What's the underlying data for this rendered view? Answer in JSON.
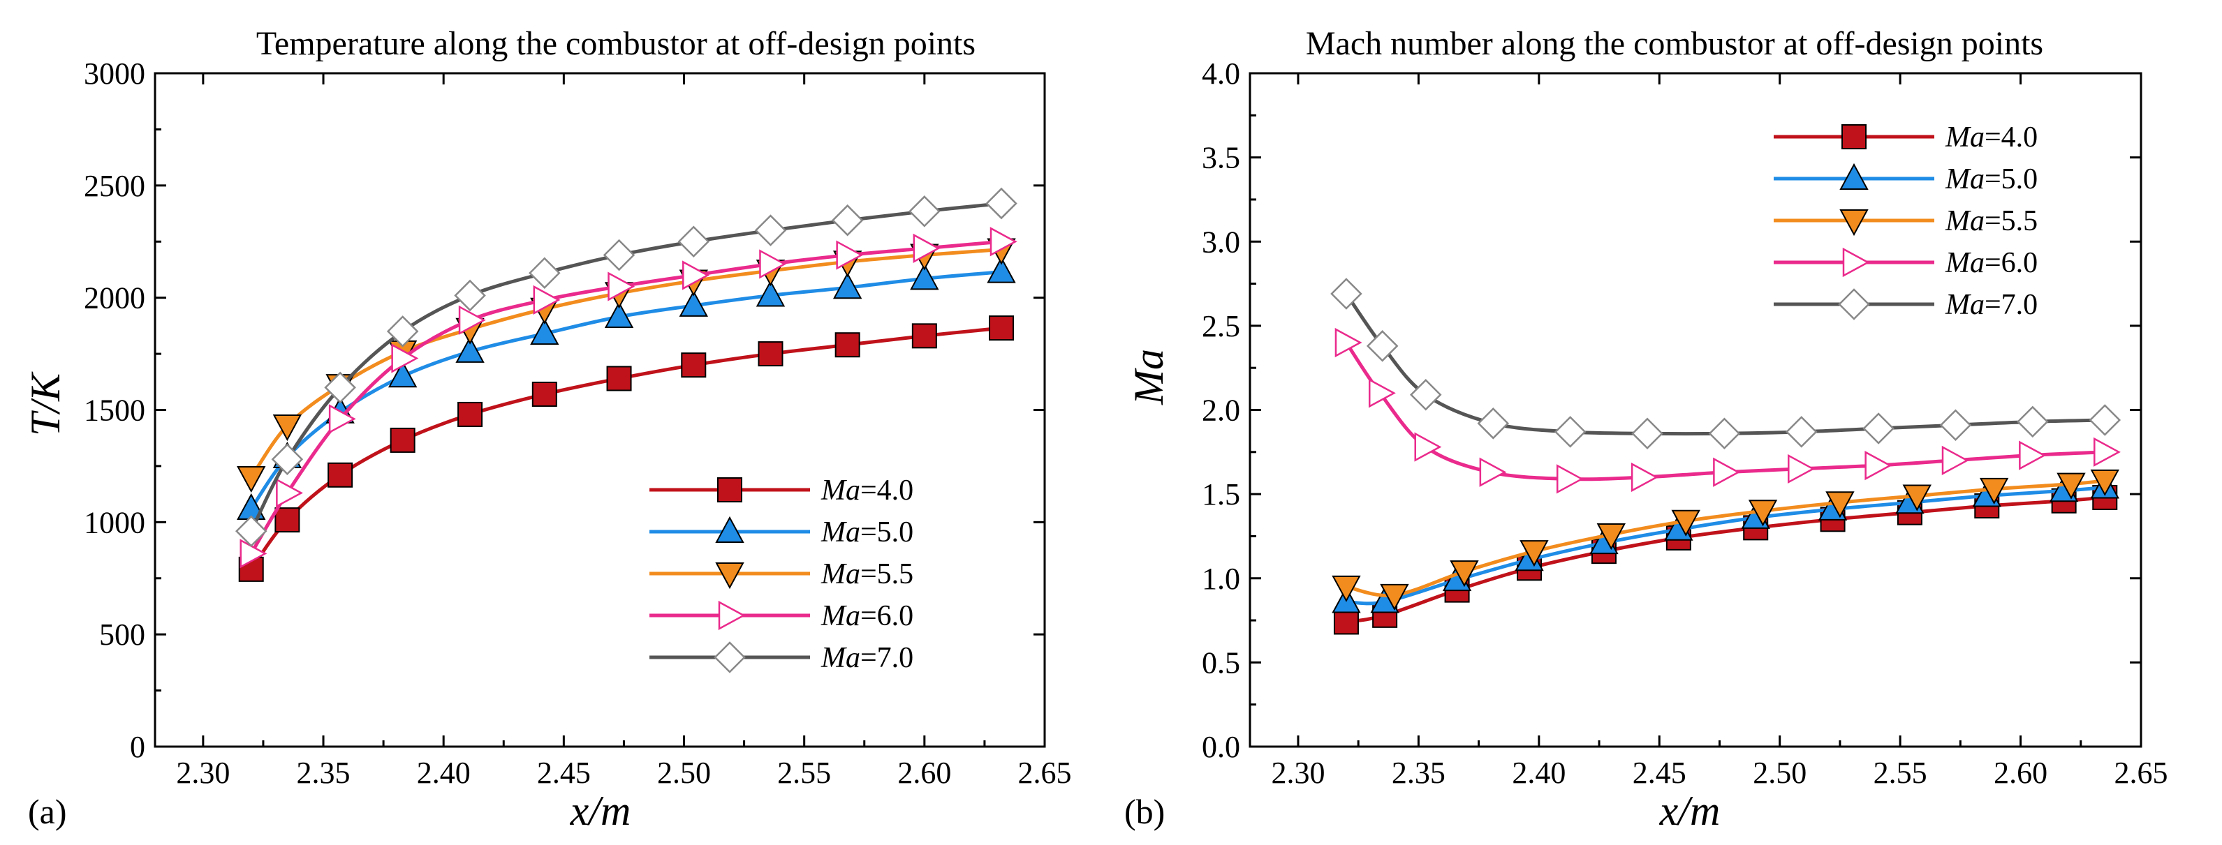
{
  "chart_data": [
    {
      "type": "line",
      "panel_tag": "(a)",
      "title": "Temperature along the combustor at off-design points",
      "xlabel": "x/m",
      "ylabel": "T/K",
      "xlim": [
        2.28,
        2.65
      ],
      "ylim": [
        0,
        3000
      ],
      "xticks": [
        2.3,
        2.35,
        2.4,
        2.45,
        2.5,
        2.55,
        2.6,
        2.65
      ],
      "xtick_labels": [
        "2.30",
        "2.35",
        "2.40",
        "2.45",
        "2.50",
        "2.55",
        "2.60",
        "2.65"
      ],
      "yticks": [
        0,
        500,
        1000,
        1500,
        2000,
        2500,
        3000
      ],
      "ytick_labels": [
        "0",
        "500",
        "1000",
        "1500",
        "2000",
        "2500",
        "3000"
      ],
      "legend_position": "bottom-right",
      "series": [
        {
          "name": "Ma=4.0",
          "name_italic": "Ma",
          "name_rest": "=4.0",
          "color": "#c0121a",
          "marker": "square",
          "marker_fill": "#c0121a",
          "x": [
            2.32,
            2.335,
            2.357,
            2.383,
            2.411,
            2.442,
            2.473,
            2.504,
            2.536,
            2.568,
            2.6,
            2.632
          ],
          "y": [
            790,
            1010,
            1210,
            1365,
            1480,
            1570,
            1640,
            1700,
            1750,
            1790,
            1830,
            1865
          ]
        },
        {
          "name": "Ma=5.0",
          "name_italic": "Ma",
          "name_rest": "=5.0",
          "color": "#1f8ce6",
          "marker": "triangle-up",
          "marker_fill": "#1f8ce6",
          "x": [
            2.32,
            2.335,
            2.357,
            2.383,
            2.411,
            2.442,
            2.473,
            2.504,
            2.536,
            2.568,
            2.6,
            2.632
          ],
          "y": [
            1060,
            1290,
            1490,
            1650,
            1760,
            1840,
            1915,
            1965,
            2010,
            2045,
            2085,
            2115
          ]
        },
        {
          "name": "Ma=5.5",
          "name_italic": "Ma",
          "name_rest": "=5.5",
          "color": "#f28c1e",
          "marker": "triangle-down",
          "marker_fill": "#f28c1e",
          "x": [
            2.32,
            2.335,
            2.357,
            2.383,
            2.411,
            2.442,
            2.473,
            2.504,
            2.536,
            2.568,
            2.6,
            2.632
          ],
          "y": [
            1200,
            1430,
            1610,
            1760,
            1860,
            1950,
            2020,
            2075,
            2120,
            2160,
            2190,
            2215
          ]
        },
        {
          "name": "Ma=6.0",
          "name_italic": "Ma",
          "name_rest": "=6.0",
          "color": "#ea2a8c",
          "marker": "triangle-right",
          "marker_fill": "none",
          "x": [
            2.32,
            2.335,
            2.357,
            2.383,
            2.411,
            2.442,
            2.473,
            2.504,
            2.536,
            2.568,
            2.6,
            2.632
          ],
          "y": [
            860,
            1130,
            1460,
            1730,
            1900,
            1990,
            2050,
            2100,
            2150,
            2190,
            2220,
            2250
          ]
        },
        {
          "name": "Ma=7.0",
          "name_italic": "Ma",
          "name_rest": "=7.0",
          "color": "#555555",
          "marker": "diamond",
          "marker_fill": "none",
          "x": [
            2.32,
            2.335,
            2.357,
            2.383,
            2.411,
            2.442,
            2.473,
            2.504,
            2.536,
            2.568,
            2.6,
            2.632
          ],
          "y": [
            960,
            1280,
            1600,
            1850,
            2010,
            2110,
            2190,
            2250,
            2300,
            2345,
            2385,
            2420
          ]
        }
      ]
    },
    {
      "type": "line",
      "panel_tag": "(b)",
      "title": "Mach number along the combustor at off-design points",
      "xlabel": "x/m",
      "ylabel": "Ma",
      "xlim": [
        2.28,
        2.65
      ],
      "ylim": [
        0.0,
        4.0
      ],
      "xticks": [
        2.3,
        2.35,
        2.4,
        2.45,
        2.5,
        2.55,
        2.6,
        2.65
      ],
      "xtick_labels": [
        "2.30",
        "2.35",
        "2.40",
        "2.45",
        "2.50",
        "2.55",
        "2.60",
        "2.65"
      ],
      "yticks": [
        0.0,
        0.5,
        1.0,
        1.5,
        2.0,
        2.5,
        3.0,
        3.5,
        4.0
      ],
      "ytick_labels": [
        "0.0",
        "0.5",
        "1.0",
        "1.5",
        "2.0",
        "2.5",
        "3.0",
        "3.5",
        "4.0"
      ],
      "legend_position": "top-right",
      "series": [
        {
          "name": "Ma=4.0",
          "name_italic": "Ma",
          "name_rest": "=4.0",
          "color": "#c0121a",
          "marker": "square",
          "marker_fill": "#c0121a",
          "x": [
            2.32,
            2.336,
            2.366,
            2.396,
            2.427,
            2.458,
            2.49,
            2.522,
            2.554,
            2.586,
            2.618,
            2.635
          ],
          "y": [
            0.74,
            0.78,
            0.93,
            1.06,
            1.16,
            1.24,
            1.3,
            1.35,
            1.39,
            1.43,
            1.46,
            1.48
          ]
        },
        {
          "name": "Ma=5.0",
          "name_italic": "Ma",
          "name_rest": "=5.0",
          "color": "#1f8ce6",
          "marker": "triangle-up",
          "marker_fill": "#1f8ce6",
          "x": [
            2.32,
            2.336,
            2.366,
            2.396,
            2.427,
            2.458,
            2.49,
            2.522,
            2.554,
            2.586,
            2.618,
            2.635
          ],
          "y": [
            0.86,
            0.86,
            0.99,
            1.11,
            1.21,
            1.29,
            1.36,
            1.41,
            1.45,
            1.49,
            1.52,
            1.54
          ]
        },
        {
          "name": "Ma=5.5",
          "name_italic": "Ma",
          "name_rest": "=5.5",
          "color": "#f28c1e",
          "marker": "triangle-down",
          "marker_fill": "#f28c1e",
          "x": [
            2.32,
            2.34,
            2.369,
            2.398,
            2.43,
            2.461,
            2.493,
            2.525,
            2.557,
            2.589,
            2.621,
            2.635
          ],
          "y": [
            0.95,
            0.9,
            1.04,
            1.16,
            1.26,
            1.34,
            1.4,
            1.45,
            1.49,
            1.53,
            1.56,
            1.58
          ]
        },
        {
          "name": "Ma=6.0",
          "name_italic": "Ma",
          "name_rest": "=6.0",
          "color": "#ea2a8c",
          "marker": "triangle-right",
          "marker_fill": "none",
          "x": [
            2.32,
            2.334,
            2.353,
            2.38,
            2.412,
            2.443,
            2.477,
            2.508,
            2.54,
            2.572,
            2.604,
            2.635
          ],
          "y": [
            2.4,
            2.1,
            1.78,
            1.63,
            1.59,
            1.6,
            1.63,
            1.65,
            1.67,
            1.7,
            1.73,
            1.75
          ]
        },
        {
          "name": "Ma=7.0",
          "name_italic": "Ma",
          "name_rest": "=7.0",
          "color": "#555555",
          "marker": "diamond",
          "marker_fill": "none",
          "x": [
            2.32,
            2.335,
            2.353,
            2.381,
            2.413,
            2.445,
            2.477,
            2.509,
            2.541,
            2.573,
            2.605,
            2.635
          ],
          "y": [
            2.69,
            2.38,
            2.09,
            1.92,
            1.87,
            1.86,
            1.86,
            1.87,
            1.89,
            1.91,
            1.93,
            1.94
          ]
        }
      ]
    }
  ]
}
